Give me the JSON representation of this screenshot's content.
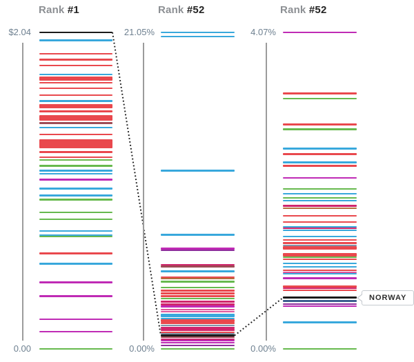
{
  "colors": {
    "palette": {
      "black": "#1a1a1a",
      "blue": "#38a8dc",
      "red": "#e9484d",
      "crimson": "#d0256c",
      "pink": "#e0559b",
      "maroon": "#9e4b55",
      "brown": "#b4703c",
      "green": "#66b94d",
      "magenta": "#bf2ab5",
      "purple": "#8e2d9c",
      "slate": "#7e93a8",
      "steel": "#3d5f8f"
    },
    "axis": "#9b9b9b",
    "axis_label": "#6e8090",
    "title_prefix": "#8c8f93",
    "title_rank": "#232323",
    "connector": "#1a1a1a",
    "callout_border": "#c5cacf"
  },
  "chart_data": {
    "type": "scatter",
    "subtype": "one-dimensional-strip-rank-chart",
    "orientation": "horizontal-strips",
    "grid": false,
    "legend": false,
    "highlight": {
      "label": "NORWAY"
    },
    "line_format": [
      "value_in_axis_units",
      "color_key",
      "thickness_px",
      "is_highlighted_norway"
    ],
    "panels": [
      {
        "title": {
          "prefix": "Rank ",
          "rank": "#1"
        },
        "axis": {
          "top_label": "$2.04",
          "bottom_label": "0.00",
          "max": 2.04,
          "min": 0
        },
        "lines": [
          [
            2.04,
            "black",
            2.5,
            1
          ],
          [
            1.989,
            "blue",
            2.5,
            0
          ],
          [
            1.902,
            "red",
            2.5,
            0
          ],
          [
            1.864,
            "red",
            2.5,
            0
          ],
          [
            1.826,
            "red",
            2.5,
            0
          ],
          [
            1.769,
            "blue",
            2,
            0
          ],
          [
            1.744,
            "red",
            6,
            0
          ],
          [
            1.715,
            "red",
            2.5,
            0
          ],
          [
            1.68,
            "red",
            2.5,
            0
          ],
          [
            1.635,
            "red",
            2.5,
            0
          ],
          [
            1.597,
            "blue",
            2.5,
            0
          ],
          [
            1.566,
            "red",
            6,
            0
          ],
          [
            1.531,
            "red",
            2.5,
            0
          ],
          [
            1.488,
            "red",
            8,
            0
          ],
          [
            1.457,
            "maroon",
            3,
            0
          ],
          [
            1.426,
            "blue",
            2.5,
            0
          ],
          [
            1.382,
            "red",
            2.5,
            0
          ],
          [
            1.321,
            "red",
            13,
            0
          ],
          [
            1.27,
            "red",
            2.5,
            0
          ],
          [
            1.237,
            "red",
            2,
            0
          ],
          [
            1.217,
            "green",
            2.5,
            0
          ],
          [
            1.181,
            "green",
            2.5,
            0
          ],
          [
            1.15,
            "blue",
            2.5,
            0
          ],
          [
            1.128,
            "blue",
            2.5,
            0
          ],
          [
            1.092,
            "magenta",
            2.5,
            0
          ],
          [
            1.034,
            "blue",
            2.5,
            0
          ],
          [
            0.99,
            "blue",
            2.5,
            0
          ],
          [
            0.963,
            "green",
            2.5,
            0
          ],
          [
            0.879,
            "green",
            2.5,
            0
          ],
          [
            0.836,
            "green",
            2.5,
            0
          ],
          [
            0.759,
            "blue",
            2.5,
            0
          ],
          [
            0.732,
            "blue",
            2,
            0
          ],
          [
            0.723,
            "green",
            2,
            0
          ],
          [
            0.616,
            "red",
            2.5,
            0
          ],
          [
            0.549,
            "blue",
            2.5,
            0
          ],
          [
            0.429,
            "magenta",
            2.5,
            0
          ],
          [
            0.34,
            "magenta",
            3,
            0
          ],
          [
            0.191,
            "magenta",
            2.5,
            0
          ],
          [
            0.111,
            "magenta",
            2.5,
            0
          ],
          [
            0.0,
            "green",
            2.5,
            0
          ]
        ]
      },
      {
        "title": {
          "prefix": "Rank ",
          "rank": "#52"
        },
        "axis": {
          "top_label": "21.05%",
          "bottom_label": "0.00%",
          "max": 21.05,
          "min": 0
        },
        "lines": [
          [
            21.05,
            "blue",
            2.5,
            0
          ],
          [
            20.77,
            "blue",
            2.5,
            0
          ],
          [
            11.85,
            "blue",
            2.5,
            0
          ],
          [
            7.58,
            "blue",
            2.5,
            0
          ],
          [
            6.68,
            "magenta",
            2.5,
            0
          ],
          [
            6.54,
            "purple",
            2,
            0
          ],
          [
            5.6,
            "crimson",
            2.5,
            0
          ],
          [
            5.49,
            "maroon",
            2.5,
            0
          ],
          [
            5.16,
            "blue",
            2.5,
            0
          ],
          [
            4.77,
            "red",
            2.5,
            0
          ],
          [
            4.66,
            "brown",
            2,
            0
          ],
          [
            4.48,
            "green",
            2.5,
            0
          ],
          [
            4.06,
            "green",
            2,
            0
          ],
          [
            3.88,
            "red",
            3,
            0
          ],
          [
            3.7,
            "red",
            3.5,
            0
          ],
          [
            3.51,
            "red",
            3.5,
            0
          ],
          [
            3.33,
            "green",
            2,
            0
          ],
          [
            3.14,
            "crimson",
            3,
            0
          ],
          [
            2.98,
            "crimson",
            3,
            0
          ],
          [
            2.82,
            "magenta",
            2.5,
            0
          ],
          [
            2.62,
            "pink",
            2,
            0
          ],
          [
            2.48,
            "pink",
            2,
            0
          ],
          [
            2.23,
            "blue",
            4.5,
            0
          ],
          [
            2.04,
            "blue",
            2,
            0
          ],
          [
            1.88,
            "red",
            3.5,
            0
          ],
          [
            1.72,
            "red",
            3,
            0
          ],
          [
            1.58,
            "slate",
            2,
            0
          ],
          [
            1.42,
            "crimson",
            3,
            0
          ],
          [
            1.26,
            "crimson",
            3,
            0
          ],
          [
            1.12,
            "red",
            2,
            0
          ],
          [
            1.01,
            "slate",
            2,
            0
          ],
          [
            0.895,
            "black",
            3,
            1
          ],
          [
            0.76,
            "maroon",
            2,
            0
          ],
          [
            0.64,
            "crimson",
            2,
            0
          ],
          [
            0.53,
            "magenta",
            2,
            0
          ],
          [
            0.39,
            "magenta",
            2,
            0
          ],
          [
            0.25,
            "purple",
            2,
            0
          ],
          [
            0.0,
            "green",
            2.5,
            0
          ]
        ]
      },
      {
        "title": {
          "prefix": "Rank ",
          "rank": "#52"
        },
        "axis": {
          "top_label": "4.07%",
          "bottom_label": "0.00%",
          "max": 4.07,
          "min": 0
        },
        "lines": [
          [
            4.07,
            "magenta",
            2.5,
            0
          ],
          [
            3.284,
            "red",
            2.5,
            0
          ],
          [
            3.218,
            "green",
            2.5,
            0
          ],
          [
            2.885,
            "red",
            2.5,
            0
          ],
          [
            2.823,
            "green",
            2.5,
            0
          ],
          [
            2.574,
            "blue",
            2.5,
            0
          ],
          [
            2.503,
            "red",
            2.5,
            0
          ],
          [
            2.397,
            "blue",
            2.5,
            0
          ],
          [
            2.352,
            "red",
            2.5,
            0
          ],
          [
            2.201,
            "magenta",
            2.5,
            0
          ],
          [
            2.059,
            "green",
            2.5,
            0
          ],
          [
            1.997,
            "blue",
            2.5,
            0
          ],
          [
            1.944,
            "green",
            2,
            0
          ],
          [
            1.908,
            "blue",
            2,
            0
          ],
          [
            1.837,
            "crimson",
            3,
            0
          ],
          [
            1.806,
            "brown",
            2,
            0
          ],
          [
            1.713,
            "red",
            2.5,
            0
          ],
          [
            1.633,
            "red",
            2.5,
            0
          ],
          [
            1.571,
            "blue",
            2,
            0
          ],
          [
            1.549,
            "crimson",
            2,
            0
          ],
          [
            1.522,
            "blue",
            2,
            0
          ],
          [
            1.447,
            "blue",
            2,
            0
          ],
          [
            1.402,
            "red",
            2.5,
            0
          ],
          [
            1.358,
            "red",
            3,
            0
          ],
          [
            1.331,
            "slate",
            2,
            0
          ],
          [
            1.296,
            "red",
            5,
            0
          ],
          [
            1.207,
            "red",
            5,
            0
          ],
          [
            1.176,
            "green",
            2,
            0
          ],
          [
            1.154,
            "red",
            2,
            0
          ],
          [
            1.101,
            "blue",
            2,
            0
          ],
          [
            1.056,
            "blue",
            2,
            0
          ],
          [
            1.007,
            "red",
            2,
            0
          ],
          [
            0.985,
            "pink",
            2,
            0
          ],
          [
            0.963,
            "blue",
            2,
            0
          ],
          [
            0.91,
            "magenta",
            3,
            0
          ],
          [
            0.803,
            "red",
            2.5,
            0
          ],
          [
            0.777,
            "crimson",
            2,
            0
          ],
          [
            0.75,
            "red",
            2,
            0
          ],
          [
            0.657,
            "black",
            3,
            1
          ],
          [
            0.617,
            "steel",
            3,
            0
          ],
          [
            0.577,
            "purple",
            2.5,
            0
          ],
          [
            0.546,
            "magenta",
            2,
            0
          ],
          [
            0.342,
            "blue",
            2.5,
            0
          ],
          [
            0.0,
            "green",
            2.5,
            0
          ]
        ]
      }
    ]
  }
}
